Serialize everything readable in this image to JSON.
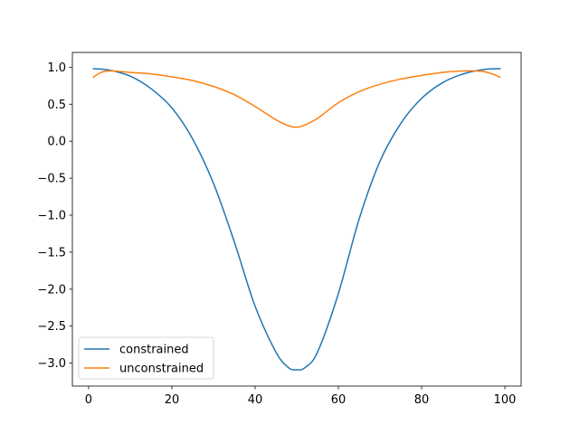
{
  "chart_data": {
    "type": "line",
    "title": "",
    "xlabel": "",
    "ylabel": "",
    "xlim": [
      -3.9,
      103.9
    ],
    "ylim": [
      -3.31,
      1.2
    ],
    "xticks": [
      0,
      20,
      40,
      60,
      80,
      100
    ],
    "xtick_labels": [
      "0",
      "20",
      "40",
      "60",
      "80",
      "100"
    ],
    "yticks": [
      1.0,
      0.5,
      0.0,
      -0.5,
      -1.0,
      -1.5,
      -2.0,
      -2.5,
      -3.0
    ],
    "ytick_labels": [
      "1.0",
      "0.5",
      "0.0",
      "−0.5",
      "−1.0",
      "−1.5",
      "−2.0",
      "−2.5",
      "−3.0"
    ],
    "grid": false,
    "legend_position": "lower-left",
    "series": [
      {
        "name": "constrained",
        "color": "#1f77b4",
        "x": [
          1,
          5,
          10,
          15,
          20,
          25,
          30,
          35,
          40,
          45,
          48,
          50,
          52,
          55,
          60,
          65,
          70,
          75,
          80,
          85,
          90,
          95,
          99
        ],
        "y": [
          0.98,
          0.96,
          0.88,
          0.71,
          0.45,
          0.03,
          -0.57,
          -1.36,
          -2.23,
          -2.85,
          -3.06,
          -3.09,
          -3.06,
          -2.85,
          -2.06,
          -1.05,
          -0.27,
          0.24,
          0.58,
          0.79,
          0.91,
          0.97,
          0.98
        ]
      },
      {
        "name": "unconstrained",
        "color": "#ff7f0e",
        "x": [
          1,
          3,
          5,
          8,
          10,
          15,
          20,
          25,
          30,
          35,
          40,
          45,
          48,
          50,
          52,
          55,
          60,
          65,
          70,
          75,
          80,
          85,
          90,
          93,
          95,
          97,
          99
        ],
        "y": [
          0.86,
          0.93,
          0.95,
          0.94,
          0.93,
          0.91,
          0.87,
          0.82,
          0.74,
          0.63,
          0.47,
          0.29,
          0.21,
          0.19,
          0.22,
          0.31,
          0.52,
          0.67,
          0.77,
          0.84,
          0.89,
          0.93,
          0.95,
          0.95,
          0.94,
          0.91,
          0.86
        ]
      }
    ]
  }
}
